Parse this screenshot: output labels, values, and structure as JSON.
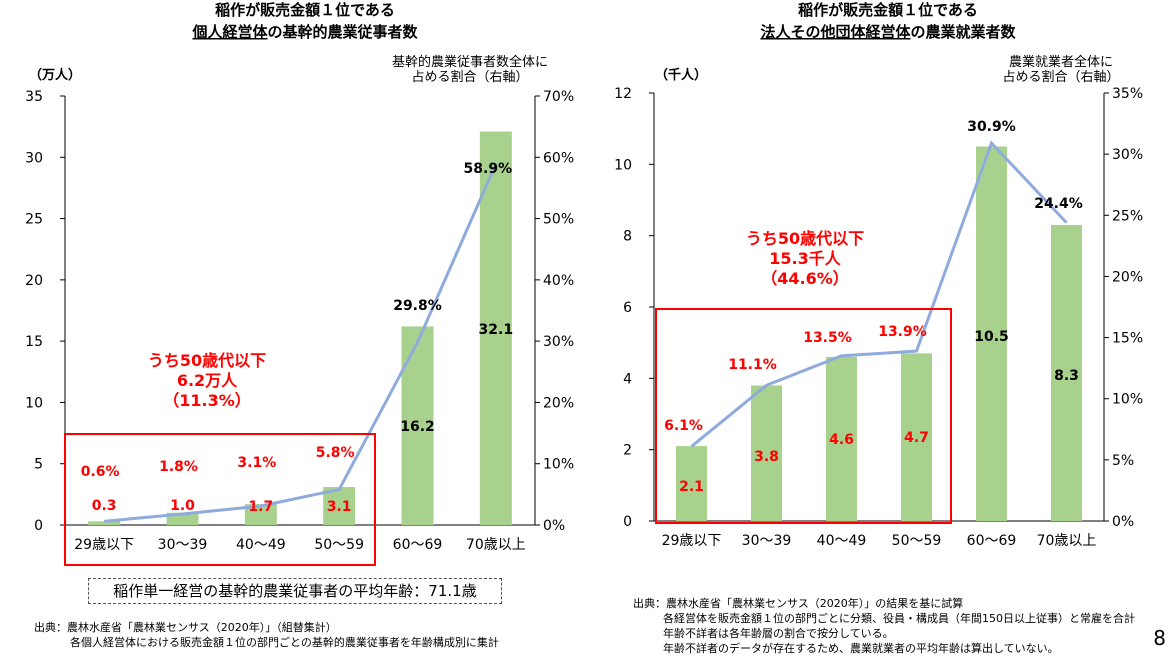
{
  "page_number": "8",
  "avg_age_note": "稲作単一経営の基幹的農業従事者の平均年齢：71.1歳",
  "left_source": [
    "出典：農林水産省「農林業センサス（2020年）」（組替集計）",
    "各個人経営体における販売金額１位の部門ごとの基幹的農業従事者を年齢構成別に集計"
  ],
  "right_source": [
    "出典：農林水産省「農林業センサス（2020年）」の結果を基に試算",
    "各経営体を販売金額１位の部門ごとに分類、役員・構成員（年間150日以上従事）と常雇を合計",
    "年齢不詳者は各年齢層の割合で按分している。",
    "年齢不詳者のデータが存在するため、農業就業者の平均年齢は算出していない。"
  ],
  "chart_data": [
    {
      "type": "bar",
      "title_line1": "稲作が販売金額１位である",
      "title_line2_under": "個人経営体",
      "title_line2_rest": "の基幹的農業従事者数",
      "ylabel": "（万人）",
      "y2label_line1": "基幹的農業従事者数全体に",
      "y2label_line2": "占める割合（右軸）",
      "categories": [
        "29歳以下",
        "30～39",
        "40～49",
        "50～59",
        "60～69",
        "70歳以上"
      ],
      "values": [
        0.3,
        1.0,
        1.7,
        3.1,
        16.2,
        32.1
      ],
      "value_labels": [
        "0.3",
        "1.0",
        "1.7",
        "3.1",
        "16.2",
        "32.1"
      ],
      "share": [
        0.6,
        1.8,
        3.1,
        5.8,
        29.8,
        58.9
      ],
      "share_labels": [
        "0.6%",
        "1.8%",
        "3.1%",
        "5.8%",
        "29.8%",
        "58.9%"
      ],
      "ylim": [
        0,
        35
      ],
      "yticks": [
        "0",
        "5",
        "10",
        "15",
        "20",
        "25",
        "30",
        "35"
      ],
      "y2lim": [
        0,
        70
      ],
      "y2ticks": [
        "0%",
        "10%",
        "20%",
        "30%",
        "40%",
        "50%",
        "60%",
        "70%"
      ],
      "note_lines": [
        "うち50歳代以下",
        "6.2万人",
        "（11.3%）"
      ],
      "bar_color": "#a9d18e",
      "line_color": "#8faadc",
      "highlight_color": "#ff0000"
    },
    {
      "type": "bar",
      "title_line1": "稲作が販売金額１位である",
      "title_line2_under": "法人その他団体経営体",
      "title_line2_rest": "の農業就業者数",
      "ylabel": "（千人）",
      "y2label_line1": "農業就業者全体に",
      "y2label_line2": "占める割合（右軸）",
      "categories": [
        "29歳以下",
        "30～39",
        "40～49",
        "50～59",
        "60～69",
        "70歳以上"
      ],
      "values": [
        2.1,
        3.8,
        4.6,
        4.7,
        10.5,
        8.3
      ],
      "value_labels": [
        "2.1",
        "3.8",
        "4.6",
        "4.7",
        "10.5",
        "8.3"
      ],
      "share": [
        6.1,
        11.1,
        13.5,
        13.9,
        30.9,
        24.4
      ],
      "share_labels": [
        "6.1%",
        "11.1%",
        "13.5%",
        "13.9%",
        "30.9%",
        "24.4%"
      ],
      "ylim": [
        0,
        12
      ],
      "yticks": [
        "0",
        "2",
        "4",
        "6",
        "8",
        "10",
        "12"
      ],
      "y2lim": [
        0,
        35
      ],
      "y2ticks": [
        "0%",
        "5%",
        "10%",
        "15%",
        "20%",
        "25%",
        "30%",
        "35%"
      ],
      "note_lines": [
        "うち50歳代以下",
        "15.3千人",
        "（44.6%）"
      ],
      "bar_color": "#a9d18e",
      "line_color": "#8faadc",
      "highlight_color": "#ff0000"
    }
  ]
}
